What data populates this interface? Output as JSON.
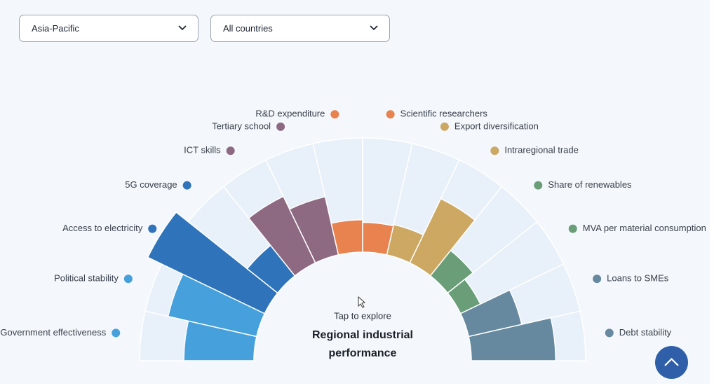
{
  "filters": [
    "Asia-Pacific",
    "All countries"
  ],
  "chart_data": {
    "type": "polar_bar",
    "title": "Regional industrial performance",
    "subtitle": "Tap to explore",
    "categories": [
      "Government effectiveness",
      "Political stability",
      "Access to electricity",
      "5G coverage",
      "ICT skills",
      "Tertiary school",
      "R&D expenditure",
      "Scientific researchers",
      "Export diversification",
      "Intraregional trade",
      "Share of renewables",
      "MVA per material consumption",
      "Loans to SMEs",
      "Debt stability"
    ],
    "values": [
      54,
      70,
      100,
      30,
      57,
      46,
      25,
      23,
      24,
      55,
      25,
      17,
      42,
      65
    ],
    "colors": [
      "#45a0dc",
      "#45a0dc",
      "#2f74ba",
      "#2f74ba",
      "#8e6a82",
      "#8e6a82",
      "#e8834f",
      "#e8834f",
      "#cda862",
      "#cda862",
      "#6a9e78",
      "#6a9e78",
      "#66899f",
      "#66899f"
    ],
    "ylim": [
      0,
      100
    ]
  }
}
